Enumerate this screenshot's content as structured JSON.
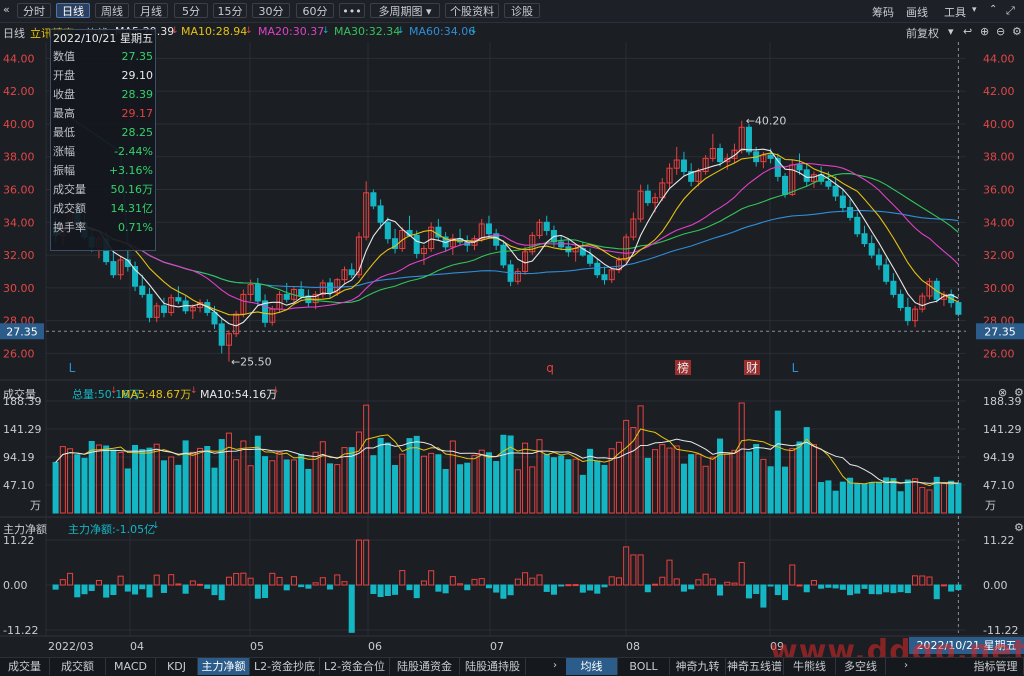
{
  "toolbar": {
    "back_icon": "double-chevron-left-icon",
    "timeframes": [
      "分时",
      "日线",
      "周线",
      "月线",
      "5分",
      "15分",
      "30分",
      "60分"
    ],
    "active_timeframe": "日线",
    "more": "•••",
    "multi_period": "多周期图",
    "stock_info": "个股资料",
    "diagnose": "诊股",
    "right_tools": [
      "筹码",
      "画线",
      "工具"
    ],
    "collapse_icon": "chevron-up-icon",
    "expand_icon": "fullscreen-icon"
  },
  "info": {
    "period": "日线",
    "stock_name": "立讯精密",
    "ma_label": "均线",
    "ma5": "MA5:29.39",
    "ma10": "MA10:28.94",
    "ma20": "MA20:30.37",
    "ma30": "MA30:32.34",
    "ma60": "MA60:34.06",
    "adjust": "前复权"
  },
  "colors": {
    "up": "#e8413f",
    "down": "#14b6c4",
    "ma5": "#e8e8e8",
    "ma10": "#e6c212",
    "ma20": "#e040c8",
    "ma30": "#33c459",
    "ma60": "#2f8ed8",
    "accent": "#2b5c8a"
  },
  "tooltip": {
    "date": "2022/10/21",
    "weekday": "星期五",
    "rows": [
      {
        "k": "数值",
        "v": "27.35",
        "c": "green"
      },
      {
        "k": "开盘",
        "v": "29.10",
        "c": "white"
      },
      {
        "k": "收盘",
        "v": "28.39",
        "c": "green"
      },
      {
        "k": "最高",
        "v": "29.17",
        "c": "red"
      },
      {
        "k": "最低",
        "v": "28.25",
        "c": "green"
      },
      {
        "k": "涨幅",
        "v": "-2.44%",
        "c": "green"
      },
      {
        "k": "振幅",
        "v": "+3.16%",
        "c": "green"
      },
      {
        "k": "成交量",
        "v": "50.16万",
        "c": "green"
      },
      {
        "k": "成交额",
        "v": "14.31亿",
        "c": "green"
      },
      {
        "k": "换手率",
        "v": "0.71%",
        "c": "green"
      }
    ]
  },
  "price_axis": {
    "ticks": [
      "44.00",
      "42.00",
      "40.00",
      "38.00",
      "36.00",
      "34.00",
      "32.00",
      "30.00",
      "28.00",
      "26.00"
    ],
    "current": "27.35",
    "high_label": "40.20",
    "low_label": "25.50"
  },
  "markers": [
    "L",
    "q",
    "榜",
    "财",
    "L"
  ],
  "volume": {
    "title": "成交量",
    "total": "总量:50.16万",
    "ma5": "MA5:48.67万",
    "ma10": "MA10:54.16万",
    "ticks": [
      "188.39",
      "141.29",
      "94.19",
      "47.10",
      "万"
    ]
  },
  "mainflow": {
    "title": "主力净额",
    "value": "主力净额:-1.05亿",
    "ticks": [
      "11.22",
      "0.00",
      "-11.22"
    ]
  },
  "x_axis": [
    "2022/03",
    "04",
    "05",
    "06",
    "07",
    "08",
    "09"
  ],
  "x_cursor_label": "2022/10/21 星期五",
  "bottom_tabs_left": [
    "成交量",
    "成交额",
    "MACD",
    "KDJ",
    "主力净额",
    "L2-资金抄底",
    "L2-资金合位",
    "陆股通资金",
    "陆股通持股"
  ],
  "bottom_tabs_right": [
    "均线",
    "BOLL",
    "神奇九转",
    "神奇五线谱",
    "牛熊线",
    "多空线",
    "指标管理"
  ],
  "active_bottom_left": "主力净额",
  "active_bottom_right": "均线",
  "watermark": "www.ddgp.net",
  "chart_data": {
    "type": "candlestick",
    "ylim": [
      24.5,
      45
    ],
    "dates_range": [
      "2022/03",
      "2022/10/21"
    ],
    "ohlc": [
      [
        33.6,
        34.3,
        32.8,
        33.2
      ],
      [
        33.2,
        33.9,
        32.6,
        33.7
      ],
      [
        33.7,
        35.0,
        33.4,
        34.8
      ],
      [
        34.8,
        35.2,
        33.8,
        34.0
      ],
      [
        34.0,
        34.5,
        32.9,
        33.1
      ],
      [
        33.1,
        33.7,
        32.2,
        32.5
      ],
      [
        32.5,
        33.2,
        31.8,
        33.0
      ],
      [
        33.0,
        33.4,
        31.4,
        31.6
      ],
      [
        31.6,
        32.2,
        30.6,
        30.8
      ],
      [
        30.8,
        31.9,
        30.5,
        31.7
      ],
      [
        31.7,
        32.4,
        31.0,
        31.3
      ],
      [
        31.3,
        31.6,
        29.8,
        30.1
      ],
      [
        30.1,
        30.8,
        29.4,
        29.6
      ],
      [
        29.6,
        30.0,
        27.9,
        28.2
      ],
      [
        28.2,
        29.1,
        27.9,
        28.9
      ],
      [
        28.9,
        29.4,
        28.2,
        28.5
      ],
      [
        28.5,
        29.6,
        28.3,
        29.4
      ],
      [
        29.4,
        30.1,
        29.0,
        29.2
      ],
      [
        29.2,
        29.5,
        28.4,
        28.6
      ],
      [
        28.6,
        29.0,
        28.1,
        28.8
      ],
      [
        28.8,
        29.3,
        28.5,
        29.1
      ],
      [
        29.1,
        29.3,
        28.3,
        28.5
      ],
      [
        28.5,
        28.9,
        27.5,
        27.8
      ],
      [
        27.8,
        28.2,
        26.0,
        26.5
      ],
      [
        26.5,
        27.4,
        25.5,
        27.2
      ],
      [
        27.2,
        28.6,
        27.0,
        28.4
      ],
      [
        28.4,
        29.9,
        28.2,
        29.6
      ],
      [
        29.6,
        30.5,
        29.2,
        30.2
      ],
      [
        30.2,
        30.6,
        28.9,
        29.2
      ],
      [
        29.2,
        29.6,
        27.6,
        27.9
      ],
      [
        27.9,
        28.9,
        27.7,
        28.7
      ],
      [
        28.7,
        29.8,
        28.5,
        29.6
      ],
      [
        29.6,
        30.3,
        29.1,
        29.3
      ],
      [
        29.3,
        30.1,
        29.0,
        29.9
      ],
      [
        29.9,
        30.4,
        29.3,
        29.5
      ],
      [
        29.5,
        29.9,
        28.8,
        29.1
      ],
      [
        29.1,
        29.8,
        28.7,
        29.6
      ],
      [
        29.6,
        30.5,
        29.4,
        30.3
      ],
      [
        30.3,
        30.6,
        29.4,
        29.7
      ],
      [
        29.7,
        30.6,
        29.5,
        30.5
      ],
      [
        30.5,
        31.3,
        30.2,
        31.1
      ],
      [
        31.1,
        31.5,
        30.6,
        30.8
      ],
      [
        30.8,
        33.4,
        30.6,
        33.1
      ],
      [
        33.1,
        36.5,
        32.9,
        35.8
      ],
      [
        35.8,
        36.0,
        34.8,
        35.0
      ],
      [
        35.0,
        35.4,
        33.6,
        34.0
      ],
      [
        34.0,
        34.3,
        32.7,
        33.0
      ],
      [
        33.0,
        33.6,
        32.1,
        32.4
      ],
      [
        32.4,
        33.7,
        32.2,
        33.5
      ],
      [
        33.5,
        34.4,
        33.1,
        33.2
      ],
      [
        33.2,
        33.5,
        31.8,
        32.1
      ],
      [
        32.1,
        32.6,
        31.4,
        32.4
      ],
      [
        32.4,
        34.0,
        32.2,
        33.7
      ],
      [
        33.7,
        34.2,
        32.9,
        33.1
      ],
      [
        33.1,
        33.4,
        32.2,
        32.5
      ],
      [
        32.5,
        33.3,
        32.0,
        33.0
      ],
      [
        33.0,
        33.6,
        32.6,
        32.8
      ],
      [
        32.8,
        33.2,
        32.2,
        32.6
      ],
      [
        32.6,
        33.2,
        32.3,
        33.0
      ],
      [
        33.0,
        34.2,
        32.8,
        33.9
      ],
      [
        33.9,
        34.4,
        33.0,
        33.3
      ],
      [
        33.3,
        33.6,
        32.3,
        32.6
      ],
      [
        32.6,
        32.9,
        31.2,
        31.4
      ],
      [
        31.4,
        31.7,
        30.1,
        30.4
      ],
      [
        30.4,
        31.2,
        30.2,
        31.0
      ],
      [
        31.0,
        32.5,
        30.8,
        32.2
      ],
      [
        32.2,
        33.4,
        32.0,
        33.2
      ],
      [
        33.2,
        34.2,
        33.0,
        34.0
      ],
      [
        34.0,
        34.4,
        33.2,
        33.5
      ],
      [
        33.5,
        33.8,
        32.5,
        32.8
      ],
      [
        32.8,
        33.2,
        32.3,
        32.5
      ],
      [
        32.5,
        32.9,
        31.9,
        32.2
      ],
      [
        32.2,
        32.6,
        31.6,
        32.4
      ],
      [
        32.4,
        32.8,
        31.9,
        32.0
      ],
      [
        32.0,
        32.4,
        31.3,
        31.5
      ],
      [
        31.5,
        31.8,
        30.6,
        30.8
      ],
      [
        30.8,
        31.3,
        30.2,
        30.5
      ],
      [
        30.5,
        31.2,
        30.3,
        31.1
      ],
      [
        31.1,
        31.9,
        30.9,
        31.7
      ],
      [
        31.7,
        33.3,
        31.5,
        33.1
      ],
      [
        33.1,
        34.6,
        32.9,
        34.2
      ],
      [
        34.2,
        36.3,
        34.0,
        35.9
      ],
      [
        35.9,
        36.3,
        35.0,
        35.2
      ],
      [
        35.2,
        35.8,
        34.6,
        35.5
      ],
      [
        35.5,
        36.7,
        35.3,
        36.4
      ],
      [
        36.4,
        37.6,
        36.1,
        37.3
      ],
      [
        37.3,
        38.6,
        36.9,
        37.8
      ],
      [
        37.8,
        38.3,
        36.8,
        37.1
      ],
      [
        37.1,
        37.6,
        36.2,
        36.5
      ],
      [
        36.5,
        37.3,
        36.2,
        37.1
      ],
      [
        37.1,
        38.1,
        36.9,
        37.9
      ],
      [
        37.9,
        39.4,
        37.7,
        38.5
      ],
      [
        38.5,
        38.8,
        37.4,
        37.7
      ],
      [
        37.7,
        38.2,
        37.2,
        37.9
      ],
      [
        37.9,
        38.8,
        37.6,
        38.4
      ],
      [
        38.4,
        40.2,
        38.2,
        39.8
      ],
      [
        39.8,
        40.0,
        38.1,
        38.3
      ],
      [
        38.3,
        38.6,
        37.4,
        37.7
      ],
      [
        37.7,
        38.3,
        37.3,
        38.1
      ],
      [
        38.1,
        38.5,
        37.6,
        37.9
      ],
      [
        37.9,
        38.2,
        36.5,
        36.8
      ],
      [
        36.8,
        37.0,
        35.5,
        35.7
      ],
      [
        35.7,
        37.8,
        35.6,
        37.5
      ],
      [
        37.5,
        38.2,
        36.9,
        37.2
      ],
      [
        37.2,
        37.6,
        36.2,
        36.5
      ],
      [
        36.5,
        37.1,
        36.1,
        36.9
      ],
      [
        36.9,
        37.4,
        36.3,
        36.5
      ],
      [
        36.5,
        37.1,
        36.0,
        36.2
      ],
      [
        36.2,
        36.8,
        35.3,
        35.6
      ],
      [
        35.6,
        36.0,
        34.6,
        34.9
      ],
      [
        34.9,
        35.4,
        34.1,
        34.3
      ],
      [
        34.3,
        34.6,
        33.1,
        33.3
      ],
      [
        33.3,
        33.8,
        32.5,
        32.7
      ],
      [
        32.7,
        33.2,
        31.8,
        32.0
      ],
      [
        32.0,
        32.4,
        31.1,
        31.4
      ],
      [
        31.4,
        31.8,
        30.2,
        30.4
      ],
      [
        30.4,
        30.9,
        29.4,
        29.6
      ],
      [
        29.6,
        29.9,
        28.6,
        28.8
      ],
      [
        28.8,
        29.4,
        27.7,
        28.0
      ],
      [
        28.0,
        28.9,
        27.6,
        28.7
      ],
      [
        28.7,
        29.7,
        28.5,
        29.5
      ],
      [
        29.5,
        30.6,
        29.3,
        30.4
      ],
      [
        30.4,
        30.6,
        29.1,
        29.3
      ],
      [
        29.3,
        29.8,
        28.9,
        29.6
      ],
      [
        29.6,
        29.9,
        28.8,
        29.1
      ],
      [
        29.1,
        29.17,
        28.25,
        28.39
      ]
    ],
    "volume_ymax": 188.39,
    "mainflow_range": [
      -11.22,
      11.22
    ]
  }
}
